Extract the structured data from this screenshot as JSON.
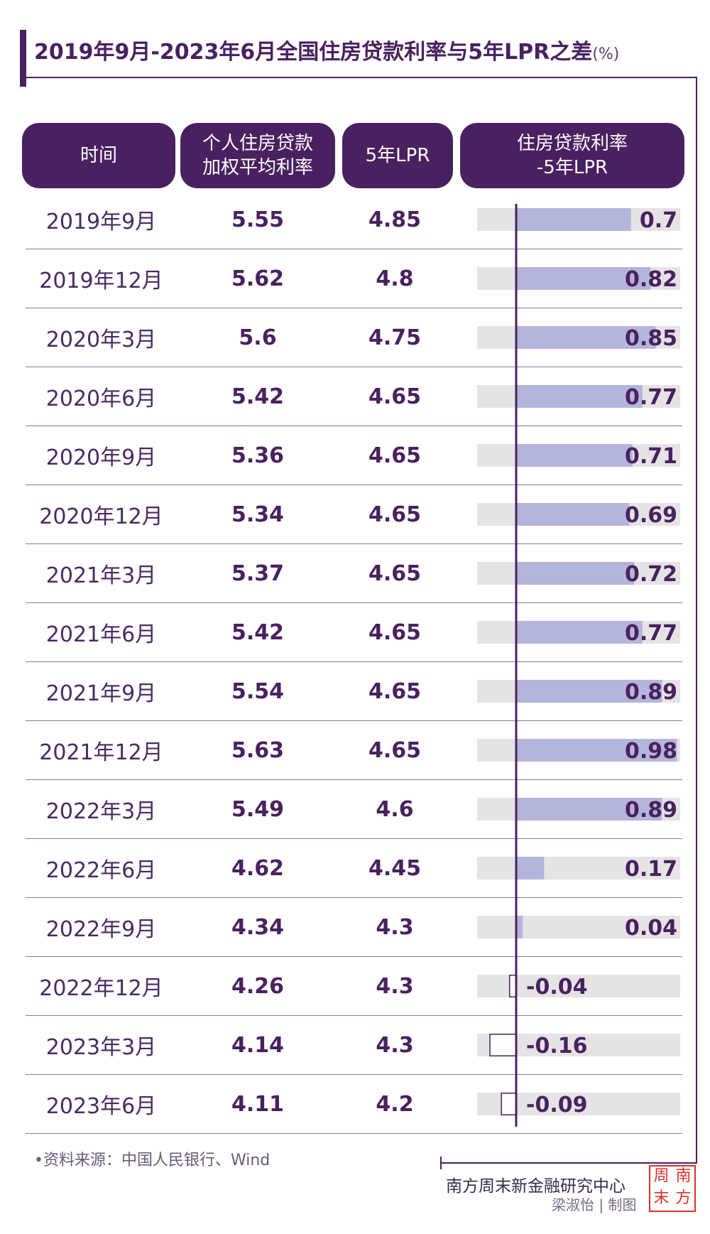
{
  "title": "2019年9月-2023年6月全国住房贷款利率与5年LPR之差",
  "title_unit": "(%)",
  "headers": {
    "time": "时间",
    "rate_line1": "个人住房贷款",
    "rate_line2": "加权平均利率",
    "lpr": "5年LPR",
    "diff_line1": "住房贷款利率",
    "diff_line2": "-5年LPR"
  },
  "chart_data": {
    "type": "table",
    "columns": [
      "时间",
      "个人住房贷款加权平均利率",
      "5年LPR",
      "住房贷款利率-5年LPR"
    ],
    "rows": [
      {
        "time": "2019年9月",
        "rate": "5.55",
        "lpr": "4.85",
        "diff": "0.7"
      },
      {
        "time": "2019年12月",
        "rate": "5.62",
        "lpr": "4.8",
        "diff": "0.82"
      },
      {
        "time": "2020年3月",
        "rate": "5.6",
        "lpr": "4.75",
        "diff": "0.85"
      },
      {
        "time": "2020年6月",
        "rate": "5.42",
        "lpr": "4.65",
        "diff": "0.77"
      },
      {
        "time": "2020年9月",
        "rate": "5.36",
        "lpr": "4.65",
        "diff": "0.71"
      },
      {
        "time": "2020年12月",
        "rate": "5.34",
        "lpr": "4.65",
        "diff": "0.69"
      },
      {
        "time": "2021年3月",
        "rate": "5.37",
        "lpr": "4.65",
        "diff": "0.72"
      },
      {
        "time": "2021年6月",
        "rate": "5.42",
        "lpr": "4.65",
        "diff": "0.77"
      },
      {
        "time": "2021年9月",
        "rate": "5.54",
        "lpr": "4.65",
        "diff": "0.89"
      },
      {
        "time": "2021年12月",
        "rate": "5.63",
        "lpr": "4.65",
        "diff": "0.98"
      },
      {
        "time": "2022年3月",
        "rate": "5.49",
        "lpr": "4.6",
        "diff": "0.89"
      },
      {
        "time": "2022年6月",
        "rate": "4.62",
        "lpr": "4.45",
        "diff": "0.17"
      },
      {
        "time": "2022年9月",
        "rate": "4.34",
        "lpr": "4.3",
        "diff": "0.04"
      },
      {
        "time": "2022年12月",
        "rate": "4.26",
        "lpr": "4.3",
        "diff": "-0.04"
      },
      {
        "time": "2023年3月",
        "rate": "4.14",
        "lpr": "4.3",
        "diff": "-0.16"
      },
      {
        "time": "2023年6月",
        "rate": "4.11",
        "lpr": "4.2",
        "diff": "-0.09"
      }
    ],
    "bar_range": [
      -0.2,
      1.0
    ],
    "colors": {
      "positive": "#b3b5dc",
      "track": "#e5e3e4",
      "axis": "#4a2160",
      "header": "#4a2160"
    }
  },
  "footer": {
    "source": "•资料来源：中国人民银行、Wind",
    "org": "南方周末新金融研究中心",
    "author": "梁淑怡 | 制图"
  },
  "seal": {
    "chars": [
      "周",
      "南",
      "末",
      "方"
    ],
    "color": "#d8322a"
  }
}
